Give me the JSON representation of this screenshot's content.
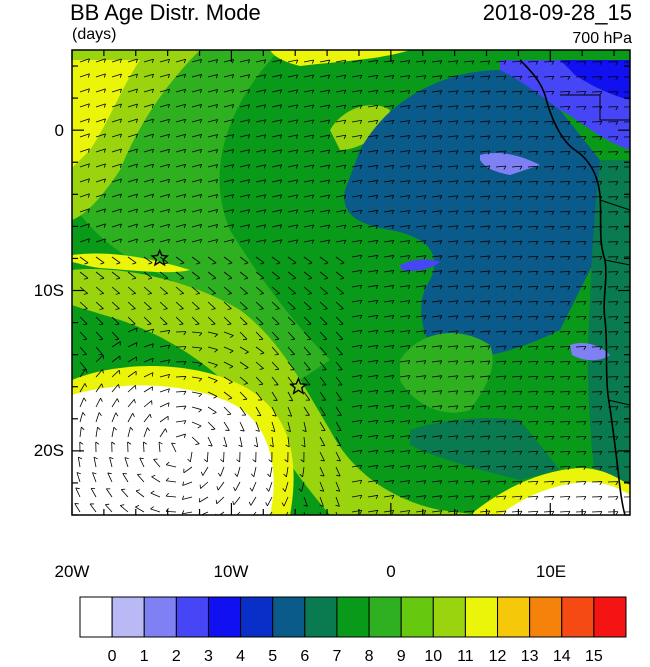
{
  "header": {
    "title": "BB Age Distr. Mode",
    "units": "(days)",
    "datetime": "2018-09-28_15",
    "level": "700 hPa"
  },
  "axes": {
    "lat_labels": [
      "0",
      "10S",
      "20S"
    ],
    "lon_labels": [
      "20W",
      "10W",
      "0",
      "10E"
    ],
    "lon_range": [
      -20,
      15
    ],
    "lat_range": [
      -24,
      5
    ]
  },
  "markers": [
    {
      "name": "star-1",
      "lon": -14.5,
      "lat": -8
    },
    {
      "name": "star-2",
      "lon": -5.8,
      "lat": -16
    }
  ],
  "colorbar": {
    "labels": [
      "0",
      "1",
      "2",
      "3",
      "4",
      "5",
      "6",
      "7",
      "8",
      "9",
      "10",
      "11",
      "12",
      "13",
      "14",
      "15"
    ],
    "colors": [
      "#ffffff",
      "#b9b9f5",
      "#8080f5",
      "#4646f7",
      "#1010f0",
      "#0a2ec8",
      "#0a5a8a",
      "#0a7a50",
      "#0a9a1a",
      "#2fb020",
      "#66c80f",
      "#9ad40f",
      "#ebf50a",
      "#f5c80a",
      "#f5820a",
      "#f54a14",
      "#f51414"
    ]
  }
}
